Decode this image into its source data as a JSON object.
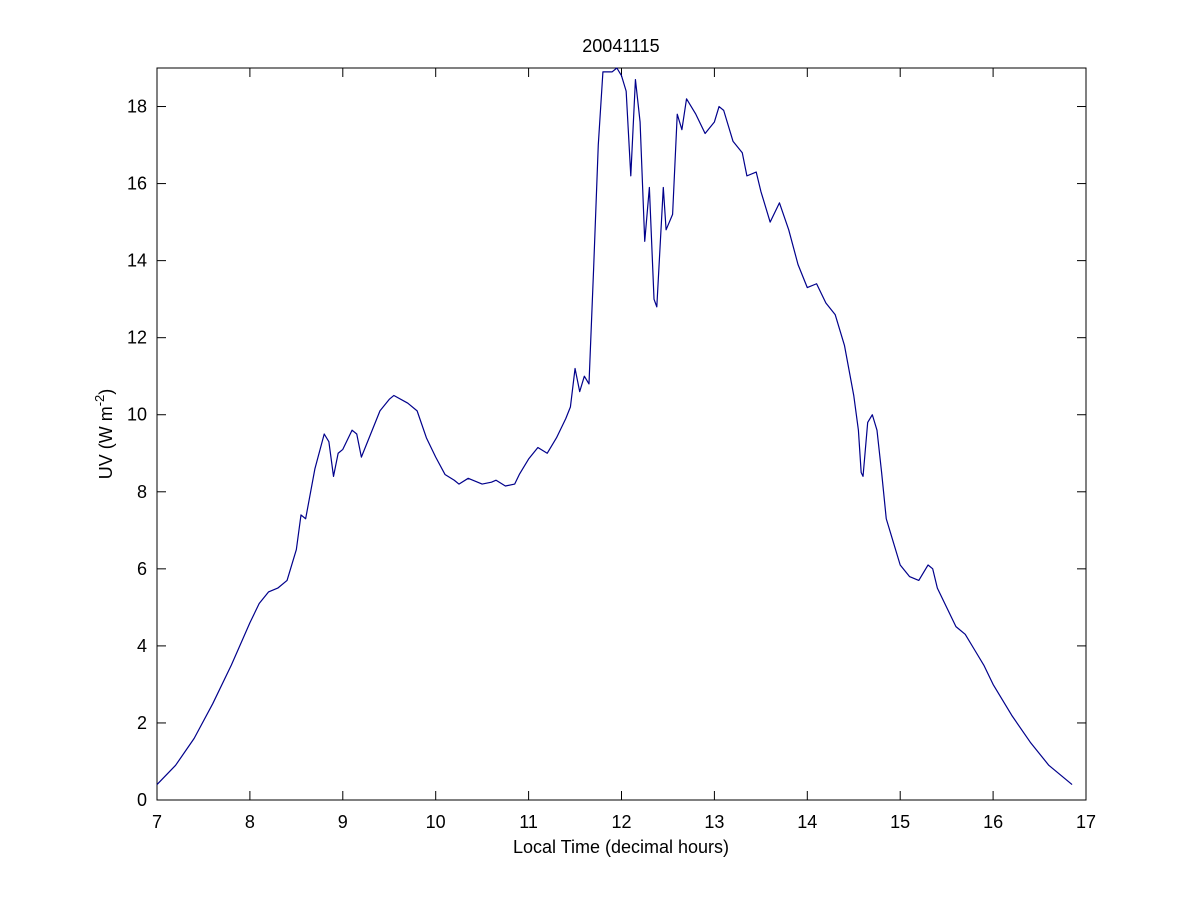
{
  "chart_data": {
    "type": "line",
    "title": "20041115",
    "xlabel": "Local Time (decimal hours)",
    "ylabel": {
      "text": "UV (W m",
      "sup": "-2",
      "tail": ")"
    },
    "xlim": [
      7,
      17
    ],
    "ylim": [
      0,
      19
    ],
    "xticks": [
      7,
      8,
      9,
      10,
      11,
      12,
      13,
      14,
      15,
      16,
      17
    ],
    "yticks": [
      0,
      2,
      4,
      6,
      8,
      10,
      12,
      14,
      16,
      18
    ],
    "color": "#00008b",
    "x": [
      7.0,
      7.2,
      7.4,
      7.6,
      7.8,
      8.0,
      8.1,
      8.2,
      8.3,
      8.4,
      8.5,
      8.55,
      8.6,
      8.7,
      8.8,
      8.85,
      8.9,
      8.95,
      9.0,
      9.1,
      9.15,
      9.2,
      9.3,
      9.4,
      9.5,
      9.55,
      9.7,
      9.8,
      9.9,
      10.0,
      10.1,
      10.2,
      10.25,
      10.35,
      10.5,
      10.6,
      10.65,
      10.75,
      10.85,
      10.9,
      11.0,
      11.1,
      11.2,
      11.3,
      11.4,
      11.45,
      11.5,
      11.55,
      11.6,
      11.65,
      11.7,
      11.75,
      11.8,
      11.9,
      11.95,
      12.0,
      12.05,
      12.1,
      12.15,
      12.2,
      12.25,
      12.3,
      12.35,
      12.38,
      12.45,
      12.48,
      12.55,
      12.6,
      12.65,
      12.7,
      12.8,
      12.9,
      13.0,
      13.05,
      13.1,
      13.2,
      13.3,
      13.35,
      13.45,
      13.5,
      13.6,
      13.7,
      13.8,
      13.9,
      14.0,
      14.1,
      14.2,
      14.3,
      14.4,
      14.5,
      14.55,
      14.58,
      14.6,
      14.65,
      14.7,
      14.75,
      14.8,
      14.85,
      14.9,
      15.0,
      15.1,
      15.2,
      15.3,
      15.35,
      15.4,
      15.5,
      15.6,
      15.7,
      15.8,
      15.9,
      16.0,
      16.2,
      16.4,
      16.6,
      16.85
    ],
    "values": [
      0.4,
      0.9,
      1.6,
      2.5,
      3.5,
      4.6,
      5.1,
      5.4,
      5.5,
      5.7,
      6.5,
      7.4,
      7.3,
      8.6,
      9.5,
      9.3,
      8.4,
      9.0,
      9.1,
      9.6,
      9.5,
      8.9,
      9.5,
      10.1,
      10.4,
      10.5,
      10.3,
      10.1,
      9.4,
      8.9,
      8.45,
      8.3,
      8.2,
      8.35,
      8.2,
      8.25,
      8.3,
      8.15,
      8.2,
      8.45,
      8.85,
      9.15,
      9.0,
      9.4,
      9.9,
      10.2,
      11.2,
      10.6,
      11.0,
      10.8,
      13.8,
      17.0,
      18.9,
      18.9,
      19.0,
      18.8,
      18.4,
      16.2,
      18.7,
      17.6,
      14.5,
      15.9,
      13.0,
      12.8,
      15.9,
      14.8,
      15.2,
      17.8,
      17.4,
      18.2,
      17.8,
      17.3,
      17.6,
      18.0,
      17.9,
      17.1,
      16.8,
      16.2,
      16.3,
      15.8,
      15.0,
      15.5,
      14.8,
      13.9,
      13.3,
      13.4,
      12.9,
      12.6,
      11.8,
      10.5,
      9.6,
      8.5,
      8.4,
      9.8,
      10.0,
      9.6,
      8.5,
      7.3,
      6.9,
      6.1,
      5.8,
      5.7,
      6.1,
      6.0,
      5.5,
      5.0,
      4.5,
      4.3,
      3.9,
      3.5,
      3.0,
      2.2,
      1.5,
      0.9,
      0.4
    ]
  }
}
